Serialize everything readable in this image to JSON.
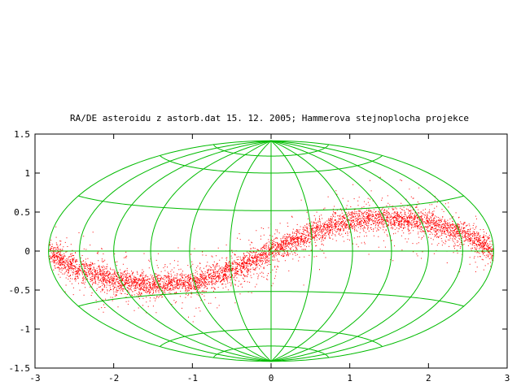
{
  "chart_data": {
    "type": "scatter",
    "title": "RA/DE asteroidu z astorb.dat 15. 12. 2005; Hammerova stejnoplocha projekce",
    "xlabel": "",
    "ylabel": "",
    "xlim": [
      -3,
      3
    ],
    "ylim": [
      -1.5,
      1.5
    ],
    "x_ticks": [
      {
        "value": -3,
        "label": "-3"
      },
      {
        "value": -2,
        "label": "-2"
      },
      {
        "value": -1,
        "label": "-1"
      },
      {
        "value": 0,
        "label": "0"
      },
      {
        "value": 1,
        "label": "1"
      },
      {
        "value": 2,
        "label": "2"
      },
      {
        "value": 3,
        "label": "3"
      }
    ],
    "y_ticks": [
      {
        "value": -1.5,
        "label": "-1.5"
      },
      {
        "value": -1,
        "label": "-1"
      },
      {
        "value": -0.5,
        "label": "-0.5"
      },
      {
        "value": 0,
        "label": "0"
      },
      {
        "value": 0.5,
        "label": "0.5"
      },
      {
        "value": 1,
        "label": "1"
      },
      {
        "value": 1.5,
        "label": "1.5"
      }
    ],
    "projection": "hammer",
    "graticule": {
      "color": "#00bb00",
      "meridian_longitudes_deg": [
        -180,
        -150,
        -120,
        -90,
        -60,
        -30,
        0,
        30,
        60,
        90,
        120,
        150,
        180
      ],
      "parallel_latitudes_deg": [
        -75,
        -60,
        -30,
        0,
        30,
        60,
        75
      ]
    },
    "series": [
      {
        "color": "#ff0000",
        "description_of_distribution": "dense band of points following the ecliptic in Hammer projection",
        "band_center": {
          "x": [
            -2.83,
            -2.5,
            -2.0,
            -1.5,
            -1.0,
            -0.5,
            0.0,
            0.5,
            1.0,
            1.5,
            2.0,
            2.5,
            2.83
          ],
          "y": [
            0.0,
            -0.21,
            -0.37,
            -0.43,
            -0.4,
            -0.24,
            0.0,
            0.24,
            0.4,
            0.43,
            0.37,
            0.21,
            0.0
          ]
        },
        "band_half_width": 0.22
      }
    ],
    "grid": false,
    "legend": "none"
  }
}
